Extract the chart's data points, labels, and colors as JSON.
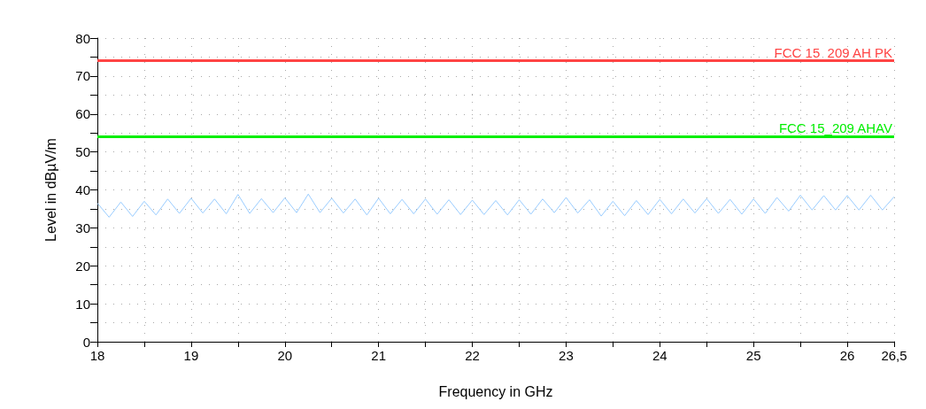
{
  "chart_data": {
    "type": "line",
    "xlabel": "Frequency in GHz",
    "ylabel": "Level in dBµV/m",
    "x": [
      18,
      18.125,
      18.25,
      18.375,
      18.5,
      18.625,
      18.75,
      18.875,
      19,
      19.125,
      19.25,
      19.375,
      19.5,
      19.625,
      19.75,
      19.875,
      20,
      20.125,
      20.25,
      20.375,
      20.5,
      20.625,
      20.75,
      20.875,
      21,
      21.125,
      21.25,
      21.375,
      21.5,
      21.625,
      21.75,
      21.875,
      22,
      22.125,
      22.25,
      22.375,
      22.5,
      22.625,
      22.75,
      22.875,
      23,
      23.125,
      23.25,
      23.375,
      23.5,
      23.625,
      23.75,
      23.875,
      24,
      24.125,
      24.25,
      24.375,
      24.5,
      24.625,
      24.75,
      24.875,
      25,
      25.125,
      25.25,
      25.375,
      25.5,
      25.625,
      25.75,
      25.875,
      26,
      26.125,
      26.25,
      26.375,
      26.5
    ],
    "series": [
      {
        "color": "#99ccff",
        "values": [
          36.5,
          32.8,
          36.8,
          33.0,
          37.0,
          33.4,
          37.6,
          33.8,
          37.8,
          33.9,
          37.6,
          33.7,
          38.8,
          33.8,
          37.7,
          34.0,
          37.9,
          34.0,
          38.9,
          34.0,
          37.8,
          33.9,
          37.6,
          33.4,
          37.8,
          33.7,
          37.5,
          33.7,
          37.6,
          33.6,
          37.4,
          33.5,
          37.3,
          33.5,
          37.2,
          33.4,
          37.4,
          33.6,
          37.6,
          34.0,
          38.0,
          33.9,
          37.4,
          33.1,
          37.0,
          33.2,
          37.2,
          33.5,
          37.5,
          33.7,
          37.6,
          33.9,
          37.7,
          33.8,
          37.5,
          33.6,
          37.6,
          33.8,
          38.0,
          34.4,
          38.6,
          34.7,
          38.5,
          34.7,
          38.5,
          34.7,
          38.6,
          34.7,
          38.2
        ]
      }
    ],
    "xlim": [
      18,
      26.5
    ],
    "xticks": [
      18,
      {
        "value": 18.5,
        "label": null
      },
      19,
      {
        "value": 19.5,
        "label": null
      },
      20,
      {
        "value": 20.5,
        "label": null
      },
      21,
      {
        "value": 21.5,
        "label": null
      },
      22,
      {
        "value": 22.5,
        "label": null
      },
      23,
      {
        "value": 23.5,
        "label": null
      },
      24,
      {
        "value": 24.5,
        "label": null
      },
      25,
      {
        "value": 25.5,
        "label": null
      },
      26,
      {
        "value": 26.5,
        "label": "26,5"
      }
    ],
    "ylim": [
      0,
      80
    ],
    "yticks": [
      0,
      {
        "value": 5,
        "label": null
      },
      10,
      {
        "value": 15,
        "label": null
      },
      20,
      {
        "value": 25,
        "label": null
      },
      30,
      {
        "value": 35,
        "label": null
      },
      40,
      {
        "value": 45,
        "label": null
      },
      50,
      {
        "value": 55,
        "label": null
      },
      60,
      {
        "value": 65,
        "label": null
      },
      70,
      {
        "value": 75,
        "label": null
      },
      80
    ],
    "ref_lines": [
      {
        "axis": "y",
        "value": 74,
        "label": "FCC 15_209 AH PK",
        "color": "#ff4444"
      },
      {
        "axis": "y",
        "value": 54,
        "label": "FCC 15_209 AHAV",
        "color": "#00ee00"
      }
    ],
    "grid": true,
    "marker": "none",
    "line_style": "solid"
  }
}
